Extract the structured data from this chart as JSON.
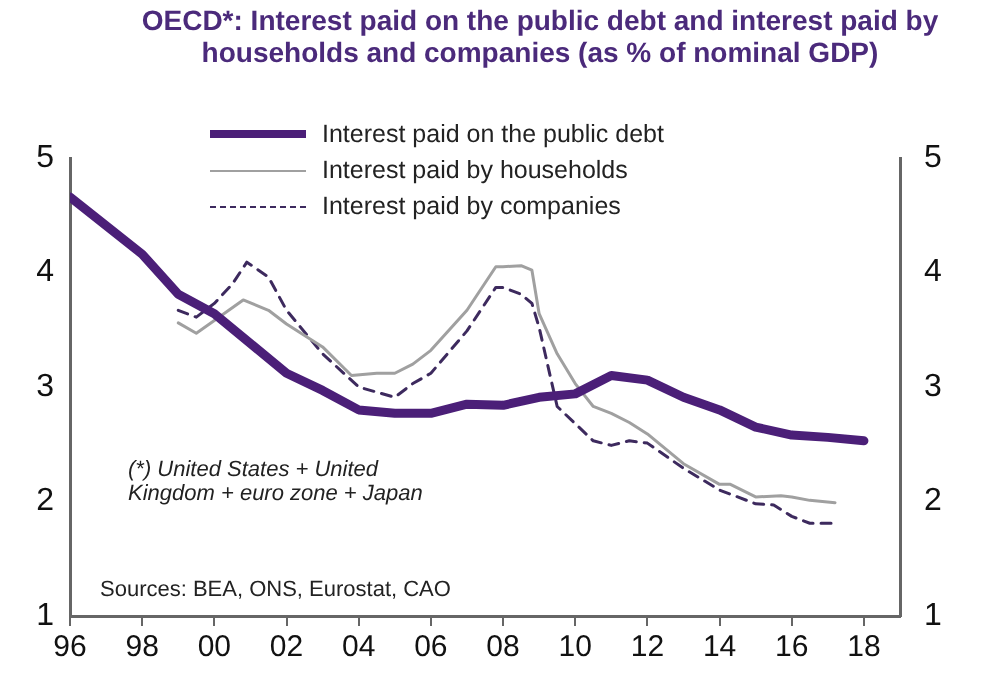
{
  "chart_data": {
    "type": "line",
    "title": "OECD*: Interest paid on the public debt and interest paid by households and companies (as % of nominal GDP)",
    "annotations": [
      "(*) United States + United Kingdom + euro zone + Japan",
      "Sources: BEA, ONS, Eurostat, CAO"
    ],
    "xlim": [
      1996,
      2019
    ],
    "xticks": [
      {
        "value": 1996,
        "label": "96"
      },
      {
        "value": 1998,
        "label": "98"
      },
      {
        "value": 2000,
        "label": "00"
      },
      {
        "value": 2002,
        "label": "02"
      },
      {
        "value": 2004,
        "label": "04"
      },
      {
        "value": 2006,
        "label": "06"
      },
      {
        "value": 2008,
        "label": "08"
      },
      {
        "value": 2010,
        "label": "10"
      },
      {
        "value": 2012,
        "label": "12"
      },
      {
        "value": 2014,
        "label": "14"
      },
      {
        "value": 2016,
        "label": "16"
      },
      {
        "value": 2018,
        "label": "18"
      }
    ],
    "ylim": [
      1,
      5
    ],
    "yticks": [
      1,
      2,
      3,
      4,
      5
    ],
    "y2lim": [
      1,
      5
    ],
    "y2ticks": [
      1,
      2,
      3,
      4,
      5
    ],
    "grid": false,
    "legend": "top",
    "marker": "none",
    "series": [
      {
        "name": "Interest paid on the public debt",
        "color": "#4b1f78",
        "line_style": "solid",
        "x": [
          1996,
          1998,
          1999,
          2000,
          2001,
          2002,
          2003,
          2004,
          2005,
          2006,
          2007,
          2008,
          2009,
          2010,
          2011,
          2012,
          2013,
          2014,
          2015,
          2016,
          2017,
          2018
        ],
        "values": [
          4.66,
          4.16,
          3.81,
          3.64,
          3.38,
          3.12,
          2.97,
          2.8,
          2.77,
          2.77,
          2.85,
          2.84,
          2.91,
          2.94,
          3.1,
          3.06,
          2.91,
          2.8,
          2.65,
          2.58,
          2.56,
          2.53
        ]
      },
      {
        "name": "Interest paid by households",
        "color": "#a0a0a0",
        "line_style": "solid",
        "x": [
          1999,
          1999.5,
          2000,
          2000.8,
          2001.5,
          2002,
          2003,
          2003.8,
          2004.5,
          2005,
          2005.5,
          2006,
          2007,
          2007.8,
          2008,
          2008.5,
          2008.8,
          2009,
          2009.5,
          2010,
          2010.5,
          2011,
          2011.5,
          2012,
          2013,
          2014,
          2014.3,
          2015,
          2015.7,
          2016,
          2016.5,
          2017.2
        ],
        "values": [
          3.56,
          3.47,
          3.58,
          3.76,
          3.67,
          3.55,
          3.35,
          3.1,
          3.12,
          3.12,
          3.2,
          3.32,
          3.67,
          4.05,
          4.05,
          4.06,
          4.02,
          3.64,
          3.29,
          3.03,
          2.83,
          2.77,
          2.69,
          2.59,
          2.33,
          2.15,
          2.15,
          2.04,
          2.05,
          2.04,
          2.01,
          1.99
        ]
      },
      {
        "name": "Interest paid by companies",
        "color": "#3d2a5e",
        "line_style": "dashed",
        "x": [
          1999,
          1999.5,
          2000,
          2000.5,
          2000.9,
          2001.5,
          2002,
          2003,
          2004,
          2005,
          2005.5,
          2006,
          2007,
          2007.8,
          2008,
          2008.5,
          2008.8,
          2009,
          2009.5,
          2010,
          2010.5,
          2011,
          2011.5,
          2012,
          2013,
          2014,
          2015,
          2015.5,
          2016,
          2016.5,
          2017.2
        ],
        "values": [
          3.67,
          3.61,
          3.73,
          3.9,
          4.09,
          3.96,
          3.67,
          3.29,
          3.0,
          2.91,
          3.03,
          3.12,
          3.49,
          3.87,
          3.87,
          3.81,
          3.73,
          3.52,
          2.83,
          2.68,
          2.53,
          2.49,
          2.53,
          2.51,
          2.29,
          2.1,
          1.98,
          1.97,
          1.87,
          1.81,
          1.81
        ]
      }
    ]
  }
}
